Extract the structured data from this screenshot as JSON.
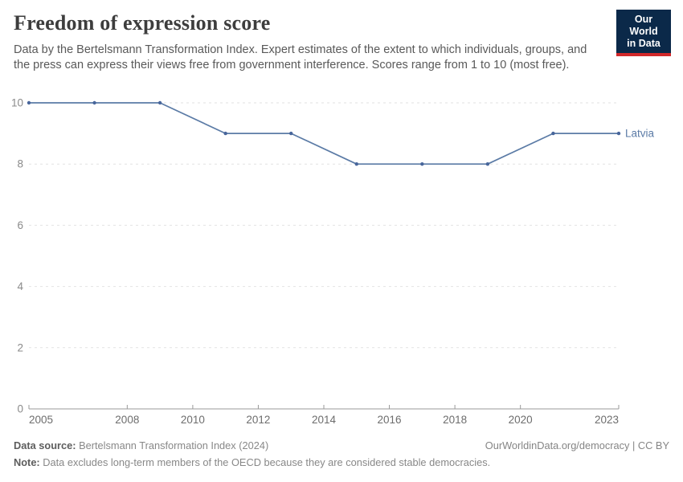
{
  "header": {
    "title": "Freedom of expression score",
    "subtitle": "Data by the Bertelsmann Transformation Index. Expert estimates of the extent to which individuals, groups, and the press can express their views free from government interference. Scores range from 1 to 10 (most free).",
    "logo": {
      "line1": "Our World",
      "line2": "in Data",
      "bg_color": "#0b2949",
      "accent_color": "#d2282a"
    }
  },
  "chart_data": {
    "type": "line",
    "title": "Freedom of expression score",
    "series": [
      {
        "name": "Latvia",
        "x": [
          2005,
          2007,
          2009,
          2011,
          2013,
          2015,
          2017,
          2019,
          2021,
          2023
        ],
        "values": [
          10,
          10,
          10,
          9,
          9,
          8,
          8,
          8,
          9,
          9
        ],
        "color": "#5b7ba6",
        "point_color": "#48669b"
      }
    ],
    "xlabel": "",
    "ylabel": "",
    "xlim": [
      2005,
      2023
    ],
    "ylim": [
      0,
      10
    ],
    "yticks": [
      0,
      2,
      4,
      6,
      8,
      10
    ],
    "xticks": [
      2005,
      2008,
      2010,
      2012,
      2014,
      2016,
      2018,
      2020,
      2023
    ],
    "grid": "horizontal-dashed",
    "gridline_color": "#e2e2e2",
    "axis_color": "#999999",
    "x_tick_label_color": "#6d6d6d",
    "y_tick_label_color": "#8a8a8a",
    "legend_position": "end-of-line"
  },
  "footer": {
    "source_label": "Data source:",
    "source_text": " Bertelsmann Transformation Index (2024)",
    "link_text": "OurWorldinData.org/democracy | CC BY",
    "note_label": "Note:",
    "note_text": " Data excludes long-term members of the OECD because they are considered stable democracies."
  }
}
